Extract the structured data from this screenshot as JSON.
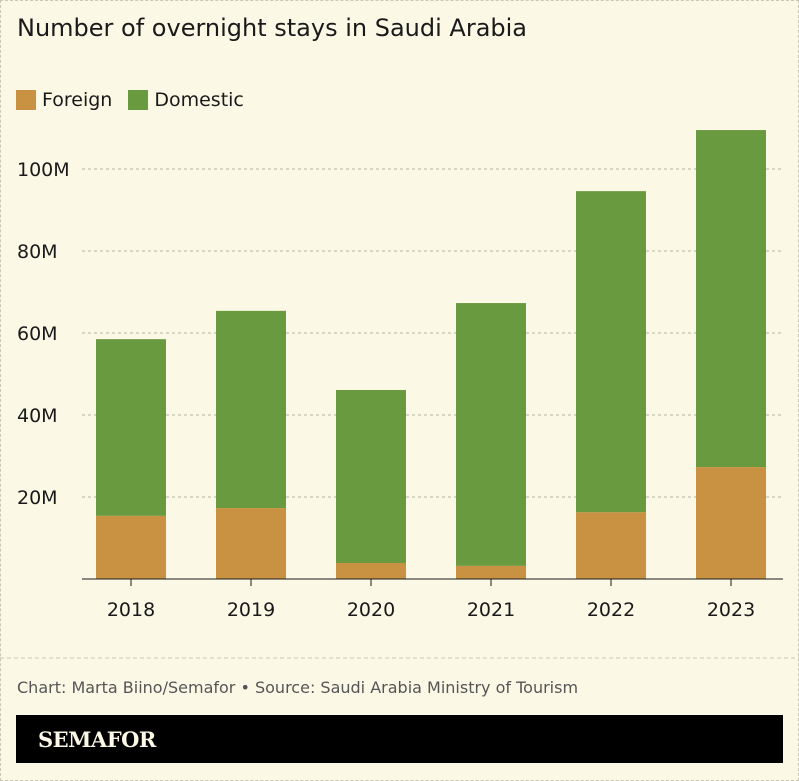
{
  "chart_data": {
    "type": "bar",
    "stacked": true,
    "title": "Number of overnight stays in Saudi Arabia",
    "categories": [
      "2018",
      "2019",
      "2020",
      "2021",
      "2022",
      "2023"
    ],
    "series": [
      {
        "name": "Foreign",
        "color": "#c99243",
        "values": [
          15.4,
          17.3,
          3.9,
          3.2,
          16.3,
          27.3
        ]
      },
      {
        "name": "Domestic",
        "color": "#6a9a3f",
        "values": [
          43.1,
          48.1,
          42.2,
          64.1,
          78.3,
          82.2
        ]
      }
    ],
    "ylim": [
      0,
      110
    ],
    "yticks": [
      20,
      40,
      60,
      80,
      100
    ],
    "ytick_labels": [
      "20M",
      "40M",
      "60M",
      "80M",
      "100M"
    ],
    "grid": true,
    "legend": "top-left",
    "xlabel": "",
    "ylabel": ""
  },
  "footer": {
    "credit": "Chart: Marta Biino/Semafor • Source: Saudi Arabia Ministry of Tourism",
    "brand": "SEMAFOR"
  }
}
